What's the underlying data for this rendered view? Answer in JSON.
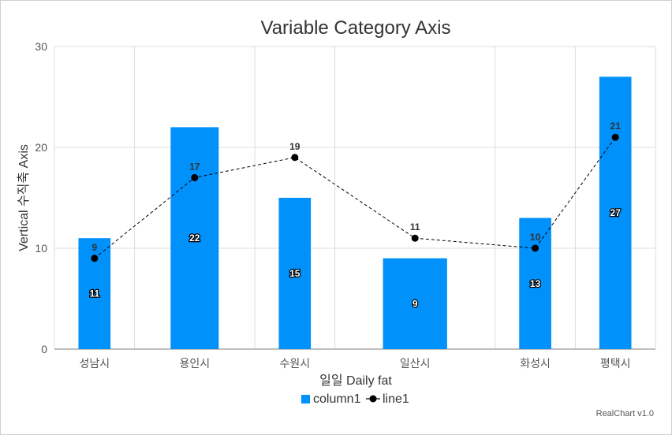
{
  "chart_data": {
    "type": "bar",
    "title": "Variable Category Axis",
    "xlabel": "일일 Daily fat",
    "ylabel": "Vertical 수직축 Axis",
    "ylim": [
      0,
      30
    ],
    "yticks": [
      0,
      10,
      20,
      30
    ],
    "grid": true,
    "legend_position": "bottom",
    "categories": [
      "성남시",
      "용인시",
      "수원시",
      "일산시",
      "화성시",
      "평택시"
    ],
    "category_widths": [
      1,
      1.5,
      1,
      2,
      1,
      1
    ],
    "series": [
      {
        "name": "column1",
        "type": "bar",
        "color": "#0091fb",
        "values": [
          11,
          22,
          15,
          9,
          13,
          27
        ]
      },
      {
        "name": "line1",
        "type": "line",
        "color": "#000000",
        "style": "dashed",
        "values": [
          9,
          17,
          19,
          11,
          10,
          21
        ]
      }
    ]
  },
  "credit": "RealChart v1.0"
}
